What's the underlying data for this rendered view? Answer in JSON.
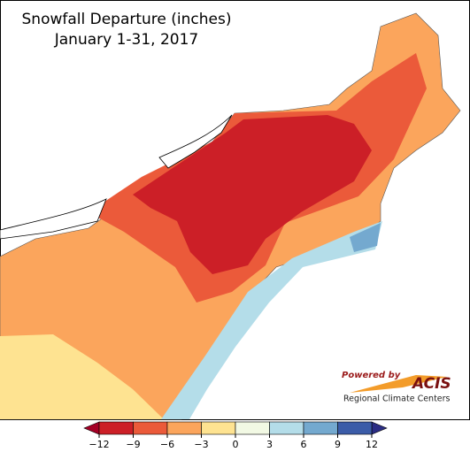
{
  "header": {
    "title": "Snowfall Departure (inches)",
    "subtitle": "January 1-31, 2017"
  },
  "legend": {
    "ticks": [
      {
        "value": -12,
        "label": "−12"
      },
      {
        "value": -9,
        "label": "−9"
      },
      {
        "value": -6,
        "label": "−6"
      },
      {
        "value": -3,
        "label": "−3"
      },
      0,
      3,
      6,
      9,
      12
    ],
    "colors": [
      "#a50026",
      "#cc1f27",
      "#eb5a3a",
      "#fba55c",
      "#fee391",
      "#f2f9e4",
      "#b4dde9",
      "#74a9cf",
      "#3b5ca8",
      "#2b2d84"
    ]
  },
  "logo": {
    "powered_by": "Powered by",
    "name": "ACIS",
    "subtitle": "Regional Climate Centers"
  }
}
